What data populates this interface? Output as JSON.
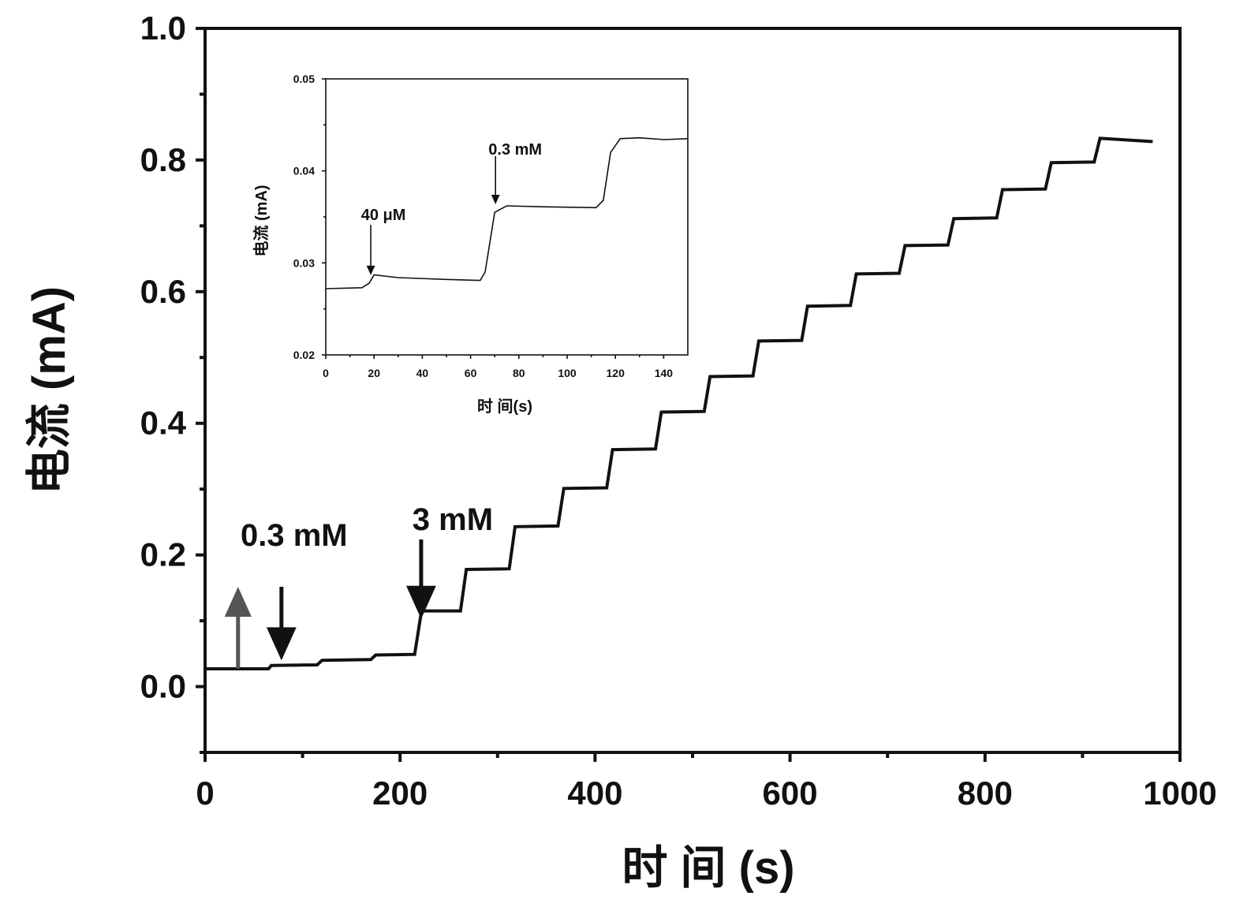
{
  "chart_data": [
    {
      "type": "line",
      "title": "",
      "xlabel": "时 间 (s)",
      "ylabel": "电流 (mA)",
      "xlim": [
        0,
        1000
      ],
      "ylim": [
        -0.1,
        1.0
      ],
      "x_ticks": [
        "0",
        "200",
        "400",
        "600",
        "800",
        "1000"
      ],
      "x_tick_values": [
        0,
        200,
        400,
        600,
        800,
        1000
      ],
      "y_ticks": [
        "0.0",
        "0.2",
        "0.4",
        "0.6",
        "0.8",
        "1.0"
      ],
      "y_tick_values": [
        0.0,
        0.2,
        0.4,
        0.6,
        0.8,
        1.0
      ],
      "grid": false,
      "line_color": "#111111",
      "series": [
        {
          "x": [
            0,
            65,
            68,
            115,
            120,
            170,
            175,
            215,
            222,
            262,
            268,
            312,
            318,
            362,
            368,
            412,
            418,
            462,
            468,
            512,
            518,
            562,
            568,
            612,
            618,
            662,
            668,
            712,
            718,
            762,
            768,
            812,
            818,
            862,
            868,
            912,
            918,
            972
          ],
          "y": [
            0.027,
            0.027,
            0.032,
            0.033,
            0.04,
            0.041,
            0.048,
            0.049,
            0.115,
            0.115,
            0.178,
            0.179,
            0.243,
            0.244,
            0.301,
            0.302,
            0.36,
            0.361,
            0.417,
            0.418,
            0.471,
            0.472,
            0.525,
            0.526,
            0.578,
            0.579,
            0.627,
            0.628,
            0.67,
            0.671,
            0.711,
            0.712,
            0.755,
            0.756,
            0.796,
            0.797,
            0.833,
            0.828
          ]
        }
      ],
      "annotations": [
        {
          "text": "0.3 mM",
          "x": 67,
          "y": 0.035,
          "arrow": "down"
        },
        {
          "text": "3 mM",
          "x": 220,
          "y": 0.11,
          "arrow": "down"
        },
        {
          "text": "",
          "x": 33,
          "y": 0.03,
          "arrow": "up"
        }
      ]
    },
    {
      "type": "line",
      "title": "",
      "xlabel": "时 间(s)",
      "ylabel": "电流 (mA)",
      "xlim": [
        0,
        150
      ],
      "ylim": [
        0.02,
        0.05
      ],
      "x_ticks": [
        "0",
        "20",
        "40",
        "60",
        "80",
        "100",
        "120",
        "140"
      ],
      "x_tick_values": [
        0,
        20,
        40,
        60,
        80,
        100,
        120,
        140
      ],
      "y_ticks": [
        "0.02",
        "0.03",
        "0.04",
        "0.05"
      ],
      "y_tick_values": [
        0.02,
        0.03,
        0.04,
        0.05
      ],
      "grid": false,
      "line_color": "#111111",
      "series": [
        {
          "x": [
            0,
            15,
            18,
            20,
            30,
            50,
            64,
            66,
            70,
            75,
            90,
            112,
            115,
            118,
            122,
            130,
            140,
            150
          ],
          "y": [
            0.0272,
            0.0273,
            0.0278,
            0.0287,
            0.0284,
            0.0282,
            0.0281,
            0.029,
            0.0355,
            0.0362,
            0.0361,
            0.036,
            0.0368,
            0.042,
            0.0435,
            0.0436,
            0.0434,
            0.0435
          ]
        }
      ],
      "annotations": [
        {
          "text": "40 μM",
          "x": 18,
          "y": 0.0285,
          "arrow": "down"
        },
        {
          "text": "0.3 mM",
          "x": 70,
          "y": 0.0362,
          "arrow": "down"
        }
      ]
    }
  ]
}
